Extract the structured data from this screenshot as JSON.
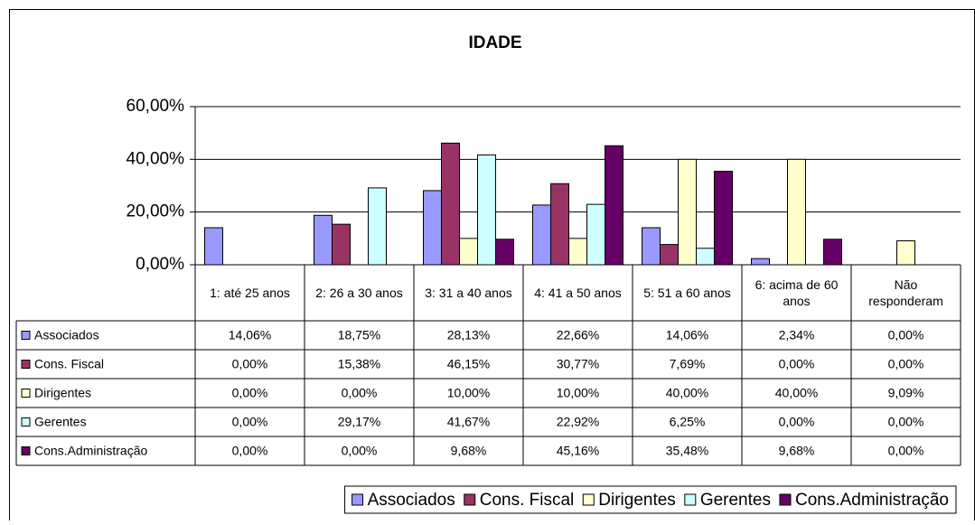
{
  "chart_data": {
    "type": "bar",
    "title": "IDADE",
    "categories": [
      "1: até 25 anos",
      "2: 26 a 30 anos",
      "3: 31 a 40 anos",
      "4: 41 a 50 anos",
      "5: 51 a 60 anos",
      "6: acima de 60 anos",
      "Não responderam"
    ],
    "series": [
      {
        "name": "Associados",
        "color": "#9999ff",
        "values": [
          14.06,
          18.75,
          28.13,
          22.66,
          14.06,
          2.34,
          0
        ],
        "value_labels": [
          "14,06%",
          "18,75%",
          "28,13%",
          "22,66%",
          "14,06%",
          "2,34%",
          "0,00%"
        ]
      },
      {
        "name": "Cons. Fiscal",
        "color": "#993366",
        "values": [
          0,
          15.38,
          46.15,
          30.77,
          7.69,
          0,
          0
        ],
        "value_labels": [
          "0,00%",
          "15,38%",
          "46,15%",
          "30,77%",
          "7,69%",
          "0,00%",
          "0,00%"
        ]
      },
      {
        "name": "Dirigentes",
        "color": "#ffffcc",
        "values": [
          0,
          0,
          10,
          10,
          40,
          40,
          9.09
        ],
        "value_labels": [
          "0,00%",
          "0,00%",
          "10,00%",
          "10,00%",
          "40,00%",
          "40,00%",
          "9,09%"
        ]
      },
      {
        "name": "Gerentes",
        "color": "#ccffff",
        "values": [
          0,
          29.17,
          41.67,
          22.92,
          6.25,
          0,
          0
        ],
        "value_labels": [
          "0,00%",
          "29,17%",
          "41,67%",
          "22,92%",
          "6,25%",
          "0,00%",
          "0,00%"
        ]
      },
      {
        "name": "Cons.Administração",
        "color": "#660066",
        "values": [
          0,
          0,
          9.68,
          45.16,
          35.48,
          9.68,
          0
        ],
        "value_labels": [
          "0,00%",
          "0,00%",
          "9,68%",
          "45,16%",
          "35,48%",
          "9,68%",
          "0,00%"
        ]
      }
    ],
    "ylim": [
      0,
      60
    ],
    "yticks": [
      {
        "value": 0,
        "label": "0,00%"
      },
      {
        "value": 20,
        "label": "20,00%"
      },
      {
        "value": 40,
        "label": "40,00%"
      },
      {
        "value": 60,
        "label": "60,00%"
      }
    ],
    "grid": true,
    "legend": "bottom"
  }
}
